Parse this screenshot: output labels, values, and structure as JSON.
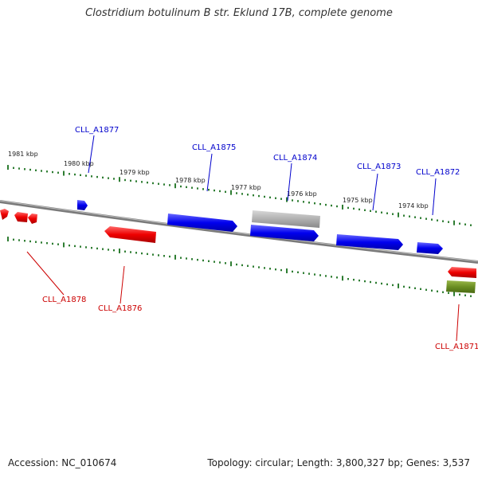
{
  "title": "Clostridium botulinum B str. Eklund 17B, complete genome",
  "accession_text": "Accession: NC_010674",
  "summary_text": "Topology: circular; Length: 3,800,327 bp; Genes: 3,537",
  "colors": {
    "backbone": "#808080",
    "tick": "#2e7d32",
    "forward_gene": "#0000ee",
    "reverse_gene": "#ee0000",
    "grey_feature": "#b0b0b0",
    "green_feature": "#6b8e23",
    "forward_label": "#0000cc",
    "reverse_label": "#cc0000"
  },
  "scale_labels": [
    "1981 kbp",
    "1980 kbp",
    "1979 kbp",
    "1978 kbp",
    "1977 kbp",
    "1976 kbp",
    "1975 kbp",
    "1974 kbp"
  ],
  "forward_genes": [
    "CLL_A1877",
    "CLL_A1875",
    "CLL_A1874",
    "CLL_A1873",
    "CLL_A1872"
  ],
  "reverse_genes": [
    "CLL_A1878",
    "CLL_A1876",
    "CLL_A1871"
  ]
}
